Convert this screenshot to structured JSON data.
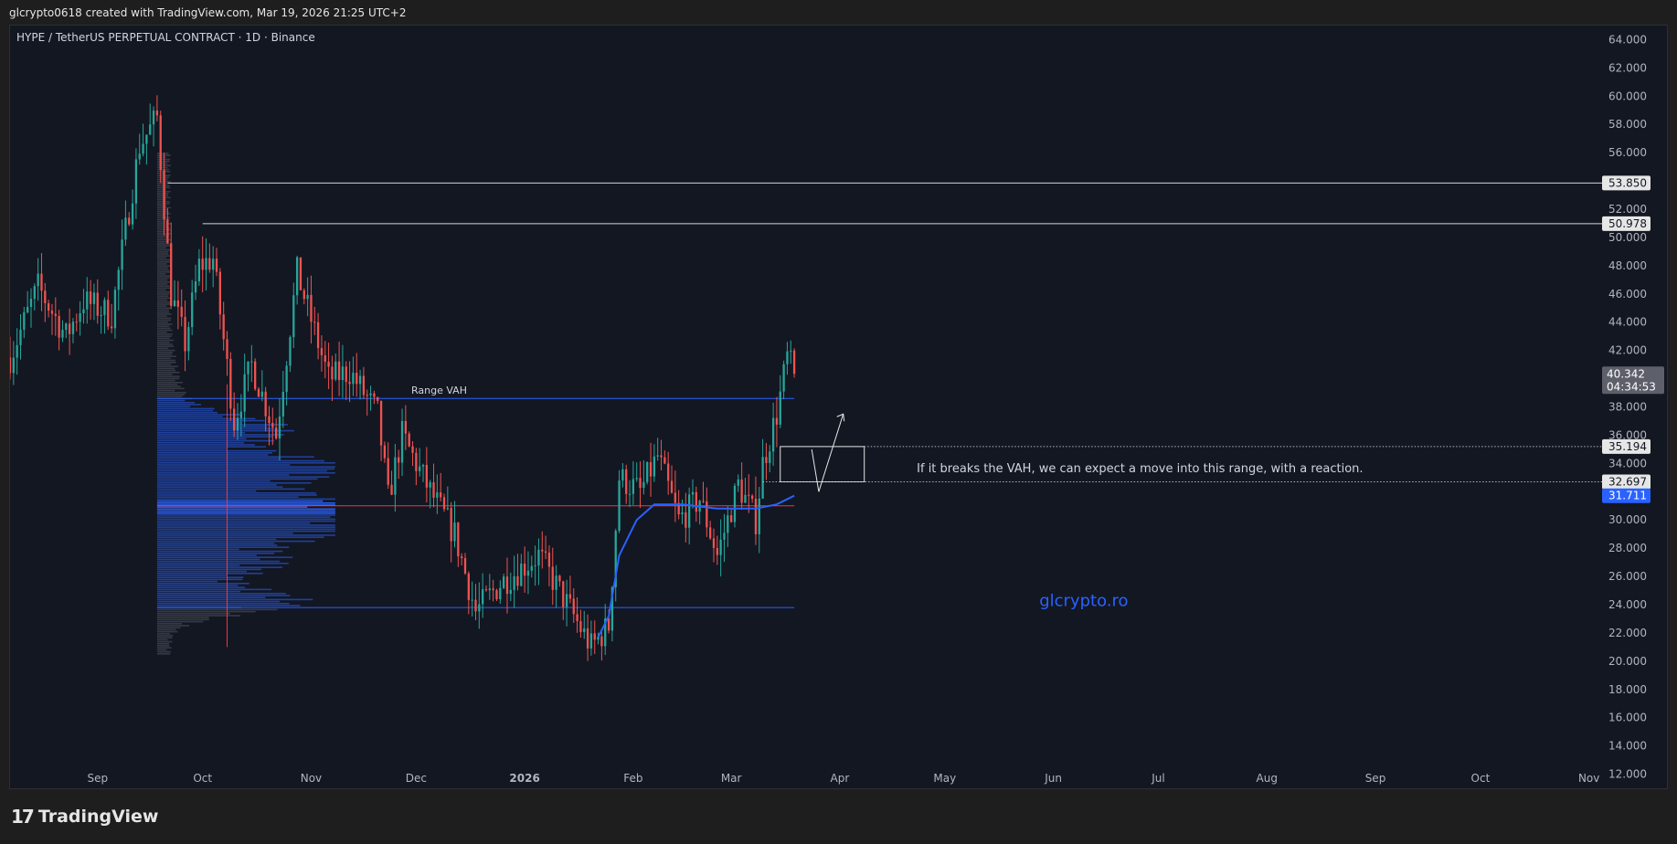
{
  "header": {
    "attribution": "glcrypto0618 created with TradingView.com, Mar 19, 2026 21:25 UTC+2"
  },
  "footer": {
    "brand": "TradingView",
    "logo_icon": "tradingview-logo-icon"
  },
  "colors": {
    "background": "#131722",
    "up": "#26a69a",
    "down": "#ef5350",
    "ma": "#2962ff",
    "vah_line": "#2962ff",
    "poc_line": "#f23645",
    "profile_value_area": "#2962ff",
    "profile_outside": "#787b86",
    "level_line": "#d1d4dc",
    "watermark": "#2962ff"
  },
  "chart_data": {
    "type": "candlestick",
    "title": "HYPE / TetherUS PERPETUAL CONTRACT · 1D · Binance",
    "xlabel": "",
    "ylabel": "",
    "ylim": [
      11,
      65
    ],
    "grid": false,
    "y_ticks": [
      "12.000",
      "14.000",
      "16.000",
      "18.000",
      "20.000",
      "22.000",
      "24.000",
      "26.000",
      "28.000",
      "30.000",
      "32.000",
      "34.000",
      "36.000",
      "38.000",
      "40.000",
      "42.000",
      "44.000",
      "46.000",
      "48.000",
      "50.000",
      "52.000",
      "54.000",
      "56.000",
      "58.000",
      "60.000",
      "62.000",
      "64.000"
    ],
    "x_ticks": [
      {
        "date": "2025-09-01",
        "label": "Sep",
        "bold": false
      },
      {
        "date": "2025-10-01",
        "label": "Oct",
        "bold": false
      },
      {
        "date": "2025-11-01",
        "label": "Nov",
        "bold": false
      },
      {
        "date": "2025-12-01",
        "label": "Dec",
        "bold": false
      },
      {
        "date": "2026-01-01",
        "label": "2026",
        "bold": true
      },
      {
        "date": "2026-02-01",
        "label": "Feb",
        "bold": false
      },
      {
        "date": "2026-03-01",
        "label": "Mar",
        "bold": false
      },
      {
        "date": "2026-04-01",
        "label": "Apr",
        "bold": false
      },
      {
        "date": "2026-05-01",
        "label": "May",
        "bold": false
      },
      {
        "date": "2026-06-01",
        "label": "Jun",
        "bold": false
      },
      {
        "date": "2026-07-01",
        "label": "Jul",
        "bold": false
      },
      {
        "date": "2026-08-01",
        "label": "Aug",
        "bold": false
      },
      {
        "date": "2026-09-01",
        "label": "Sep",
        "bold": false
      },
      {
        "date": "2026-10-01",
        "label": "Oct",
        "bold": false
      },
      {
        "date": "2026-11-01",
        "label": "Nov",
        "bold": false
      }
    ],
    "xlim": [
      "2025-08-07",
      "2026-11-05"
    ],
    "anchors": [
      {
        "date": "2025-08-07",
        "close": 41.5
      },
      {
        "date": "2025-08-15",
        "close": 46.5
      },
      {
        "date": "2025-08-23",
        "close": 43.0
      },
      {
        "date": "2025-08-28",
        "close": 45.5
      },
      {
        "date": "2025-09-05",
        "close": 44.5
      },
      {
        "date": "2025-09-13",
        "close": 56.5
      },
      {
        "date": "2025-09-18",
        "close": 58.5
      },
      {
        "date": "2025-09-22",
        "close": 46.0
      },
      {
        "date": "2025-09-26",
        "close": 42.5
      },
      {
        "date": "2025-09-30",
        "close": 48.0
      },
      {
        "date": "2025-10-04",
        "close": 48.5
      },
      {
        "date": "2025-10-10",
        "close": 37.0
      },
      {
        "date": "2025-10-15",
        "close": 41.0
      },
      {
        "date": "2025-10-22",
        "close": 36.0
      },
      {
        "date": "2025-10-28",
        "close": 47.5
      },
      {
        "date": "2025-11-06",
        "close": 40.0
      },
      {
        "date": "2025-11-12",
        "close": 40.5
      },
      {
        "date": "2025-11-20",
        "close": 37.5
      },
      {
        "date": "2025-11-23",
        "close": 31.5
      },
      {
        "date": "2025-11-27",
        "close": 36.0
      },
      {
        "date": "2025-12-05",
        "close": 32.0
      },
      {
        "date": "2025-12-12",
        "close": 29.0
      },
      {
        "date": "2025-12-18",
        "close": 23.5
      },
      {
        "date": "2025-12-25",
        "close": 25.5
      },
      {
        "date": "2026-01-05",
        "close": 27.5
      },
      {
        "date": "2026-01-12",
        "close": 24.5
      },
      {
        "date": "2026-01-20",
        "close": 21.0
      },
      {
        "date": "2026-01-25",
        "close": 22.5
      },
      {
        "date": "2026-01-28",
        "close": 33.0
      },
      {
        "date": "2026-02-03",
        "close": 32.0
      },
      {
        "date": "2026-02-08",
        "close": 34.5
      },
      {
        "date": "2026-02-14",
        "close": 30.0
      },
      {
        "date": "2026-02-20",
        "close": 31.5
      },
      {
        "date": "2026-02-25",
        "close": 27.5
      },
      {
        "date": "2026-03-03",
        "close": 32.5
      },
      {
        "date": "2026-03-08",
        "close": 30.0
      },
      {
        "date": "2026-03-10",
        "close": 34.0
      },
      {
        "date": "2026-03-14",
        "close": 37.5
      },
      {
        "date": "2026-03-17",
        "close": 41.5
      },
      {
        "date": "2026-03-19",
        "close": 40.342
      }
    ],
    "moving_average": [
      {
        "date": "2026-01-22",
        "value": 21.7
      },
      {
        "date": "2026-01-25",
        "value": 23.2
      },
      {
        "date": "2026-01-28",
        "value": 27.5
      },
      {
        "date": "2026-02-02",
        "value": 30.0
      },
      {
        "date": "2026-02-07",
        "value": 31.1
      },
      {
        "date": "2026-02-15",
        "value": 31.1
      },
      {
        "date": "2026-02-25",
        "value": 30.8
      },
      {
        "date": "2026-03-08",
        "value": 30.8
      },
      {
        "date": "2026-03-14",
        "value": 31.1
      },
      {
        "date": "2026-03-19",
        "value": 31.711
      }
    ],
    "volume_profile": {
      "start_date": "2025-09-18",
      "end_date": "2026-03-19",
      "price_range": [
        20.5,
        56.0
      ],
      "poc": 31.0,
      "vah": 38.6,
      "val": 23.8,
      "peaks": [
        {
          "price": 31.0,
          "weight": 1.0
        },
        {
          "price": 33.7,
          "weight": 0.9
        },
        {
          "price": 29.3,
          "weight": 0.85
        },
        {
          "price": 36.5,
          "weight": 0.55
        },
        {
          "price": 24.3,
          "weight": 0.8
        },
        {
          "price": 27.0,
          "weight": 0.6
        }
      ]
    },
    "levels": [
      {
        "value": 53.85,
        "label": "53.850",
        "start_date": "2025-09-21"
      },
      {
        "value": 50.978,
        "label": "50.978",
        "start_date": "2025-10-01"
      }
    ],
    "range_vah": {
      "value": 38.6,
      "label": "Range VAH",
      "start_date": "2025-09-18",
      "end_date": "2026-03-19"
    },
    "poc_line": {
      "value": 31.0,
      "start_date": "2025-09-18",
      "end_date": "2026-03-19"
    },
    "val_line": {
      "value": 23.8,
      "start_date": "2025-09-18",
      "end_date": "2026-03-19"
    },
    "range_box": {
      "start_date": "2026-03-15",
      "end_date": "2026-04-08",
      "top": 35.194,
      "bottom": 32.697
    },
    "dotted_levels": [
      {
        "value": 35.194,
        "label": "35.194",
        "start_date": "2026-04-08"
      },
      {
        "value": 32.697,
        "label": "32.697",
        "start_date": "2026-03-10"
      }
    ],
    "arrow_path": [
      {
        "date": "2026-03-24",
        "value": 35.0
      },
      {
        "date": "2026-03-26",
        "value": 32.0
      },
      {
        "date": "2026-04-02",
        "value": 37.5
      }
    ],
    "annotation": {
      "text": "If it breaks the VAH, we can expect a move into this range, with a reaction.",
      "date": "2026-04-23",
      "value": 33.7
    },
    "watermark": {
      "text": "glcrypto.ro",
      "date": "2026-05-28",
      "value": 24.3
    },
    "last_price": {
      "value": "40.342",
      "countdown": "04:34:53"
    },
    "ma_label": "31.711"
  }
}
